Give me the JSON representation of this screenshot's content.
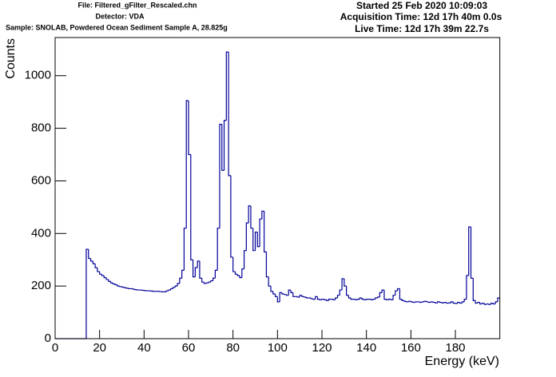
{
  "chart_data": {
    "type": "histogram",
    "annotations_left": [
      "File: Filtered_gFilter_Rescaled.chn",
      "Detector: VDA",
      "Sample: SNOLAB, Powdered Ocean Sediment Sample A, 28.825g"
    ],
    "annotations_right": [
      "Started 25 Feb 2020 10:09:03",
      "Acquisition Time: 12d 17h 40m 0.0s",
      "Live Time: 12d 17h 39m 22.7s"
    ],
    "x_label": "Energy (keV)",
    "y_label": "Counts",
    "color": "#000099",
    "xlim": [
      0,
      200
    ],
    "ylim": [
      0,
      1145
    ],
    "xticks": [
      0,
      20,
      40,
      60,
      80,
      100,
      120,
      140,
      160,
      180
    ],
    "yticks": [
      0,
      200,
      400,
      600,
      800,
      1000
    ],
    "bins": [
      0,
      1,
      2,
      3,
      4,
      5,
      6,
      7,
      8,
      9,
      10,
      11,
      12,
      13,
      14,
      15,
      16,
      17,
      18,
      19,
      20,
      21,
      22,
      23,
      24,
      25,
      26,
      27,
      28,
      29,
      30,
      31,
      32,
      33,
      34,
      35,
      36,
      37,
      38,
      39,
      40,
      41,
      42,
      43,
      44,
      45,
      46,
      47,
      48,
      49,
      50,
      51,
      52,
      53,
      54,
      55,
      56,
      57,
      58,
      59,
      60,
      61,
      62,
      63,
      64,
      65,
      66,
      67,
      68,
      69,
      70,
      71,
      72,
      73,
      74,
      75,
      76,
      77,
      78,
      79,
      80,
      81,
      82,
      83,
      84,
      85,
      86,
      87,
      88,
      89,
      90,
      91,
      92,
      93,
      94,
      95,
      96,
      97,
      98,
      99,
      100,
      101,
      102,
      103,
      104,
      105,
      106,
      107,
      108,
      109,
      110,
      111,
      112,
      113,
      114,
      115,
      116,
      117,
      118,
      119,
      120,
      121,
      122,
      123,
      124,
      125,
      126,
      127,
      128,
      129,
      130,
      131,
      132,
      133,
      134,
      135,
      136,
      137,
      138,
      139,
      140,
      141,
      142,
      143,
      144,
      145,
      146,
      147,
      148,
      149,
      150,
      151,
      152,
      153,
      154,
      155,
      156,
      157,
      158,
      159,
      160,
      161,
      162,
      163,
      164,
      165,
      166,
      167,
      168,
      169,
      170,
      171,
      172,
      173,
      174,
      175,
      176,
      177,
      178,
      179,
      180,
      181,
      182,
      183,
      184,
      185,
      186,
      187,
      188,
      189,
      190,
      191,
      192,
      193,
      194,
      195,
      196,
      197,
      198,
      199,
      200
    ],
    "values": [
      0,
      0,
      0,
      0,
      0,
      0,
      0,
      0,
      0,
      0,
      0,
      0,
      0,
      0,
      340,
      305,
      295,
      285,
      270,
      255,
      245,
      240,
      232,
      225,
      218,
      212,
      208,
      205,
      200,
      198,
      196,
      194,
      192,
      190,
      190,
      188,
      186,
      185,
      185,
      184,
      183,
      182,
      182,
      181,
      180,
      180,
      180,
      179,
      178,
      178,
      182,
      185,
      190,
      195,
      200,
      210,
      230,
      260,
      420,
      905,
      700,
      300,
      235,
      270,
      295,
      230,
      215,
      210,
      212,
      215,
      220,
      230,
      260,
      420,
      815,
      640,
      830,
      1090,
      620,
      310,
      255,
      245,
      240,
      232,
      265,
      335,
      440,
      505,
      420,
      335,
      405,
      350,
      455,
      485,
      330,
      235,
      200,
      180,
      170,
      160,
      140,
      175,
      170,
      168,
      165,
      185,
      175,
      160,
      160,
      158,
      165,
      160,
      158,
      155,
      155,
      152,
      150,
      160,
      150,
      148,
      150,
      148,
      145,
      150,
      150,
      148,
      155,
      165,
      185,
      228,
      200,
      165,
      155,
      150,
      150,
      148,
      150,
      155,
      150,
      148,
      150,
      150,
      148,
      150,
      155,
      158,
      175,
      185,
      150,
      148,
      150,
      148,
      165,
      182,
      190,
      150,
      145,
      142,
      140,
      142,
      140,
      138,
      140,
      140,
      138,
      140,
      142,
      140,
      138,
      140,
      138,
      136,
      140,
      138,
      136,
      138,
      135,
      136,
      140,
      135,
      134,
      138,
      135,
      140,
      150,
      240,
      425,
      230,
      145,
      135,
      138,
      132,
      135,
      130,
      132,
      130,
      135,
      132,
      140,
      155
    ]
  }
}
